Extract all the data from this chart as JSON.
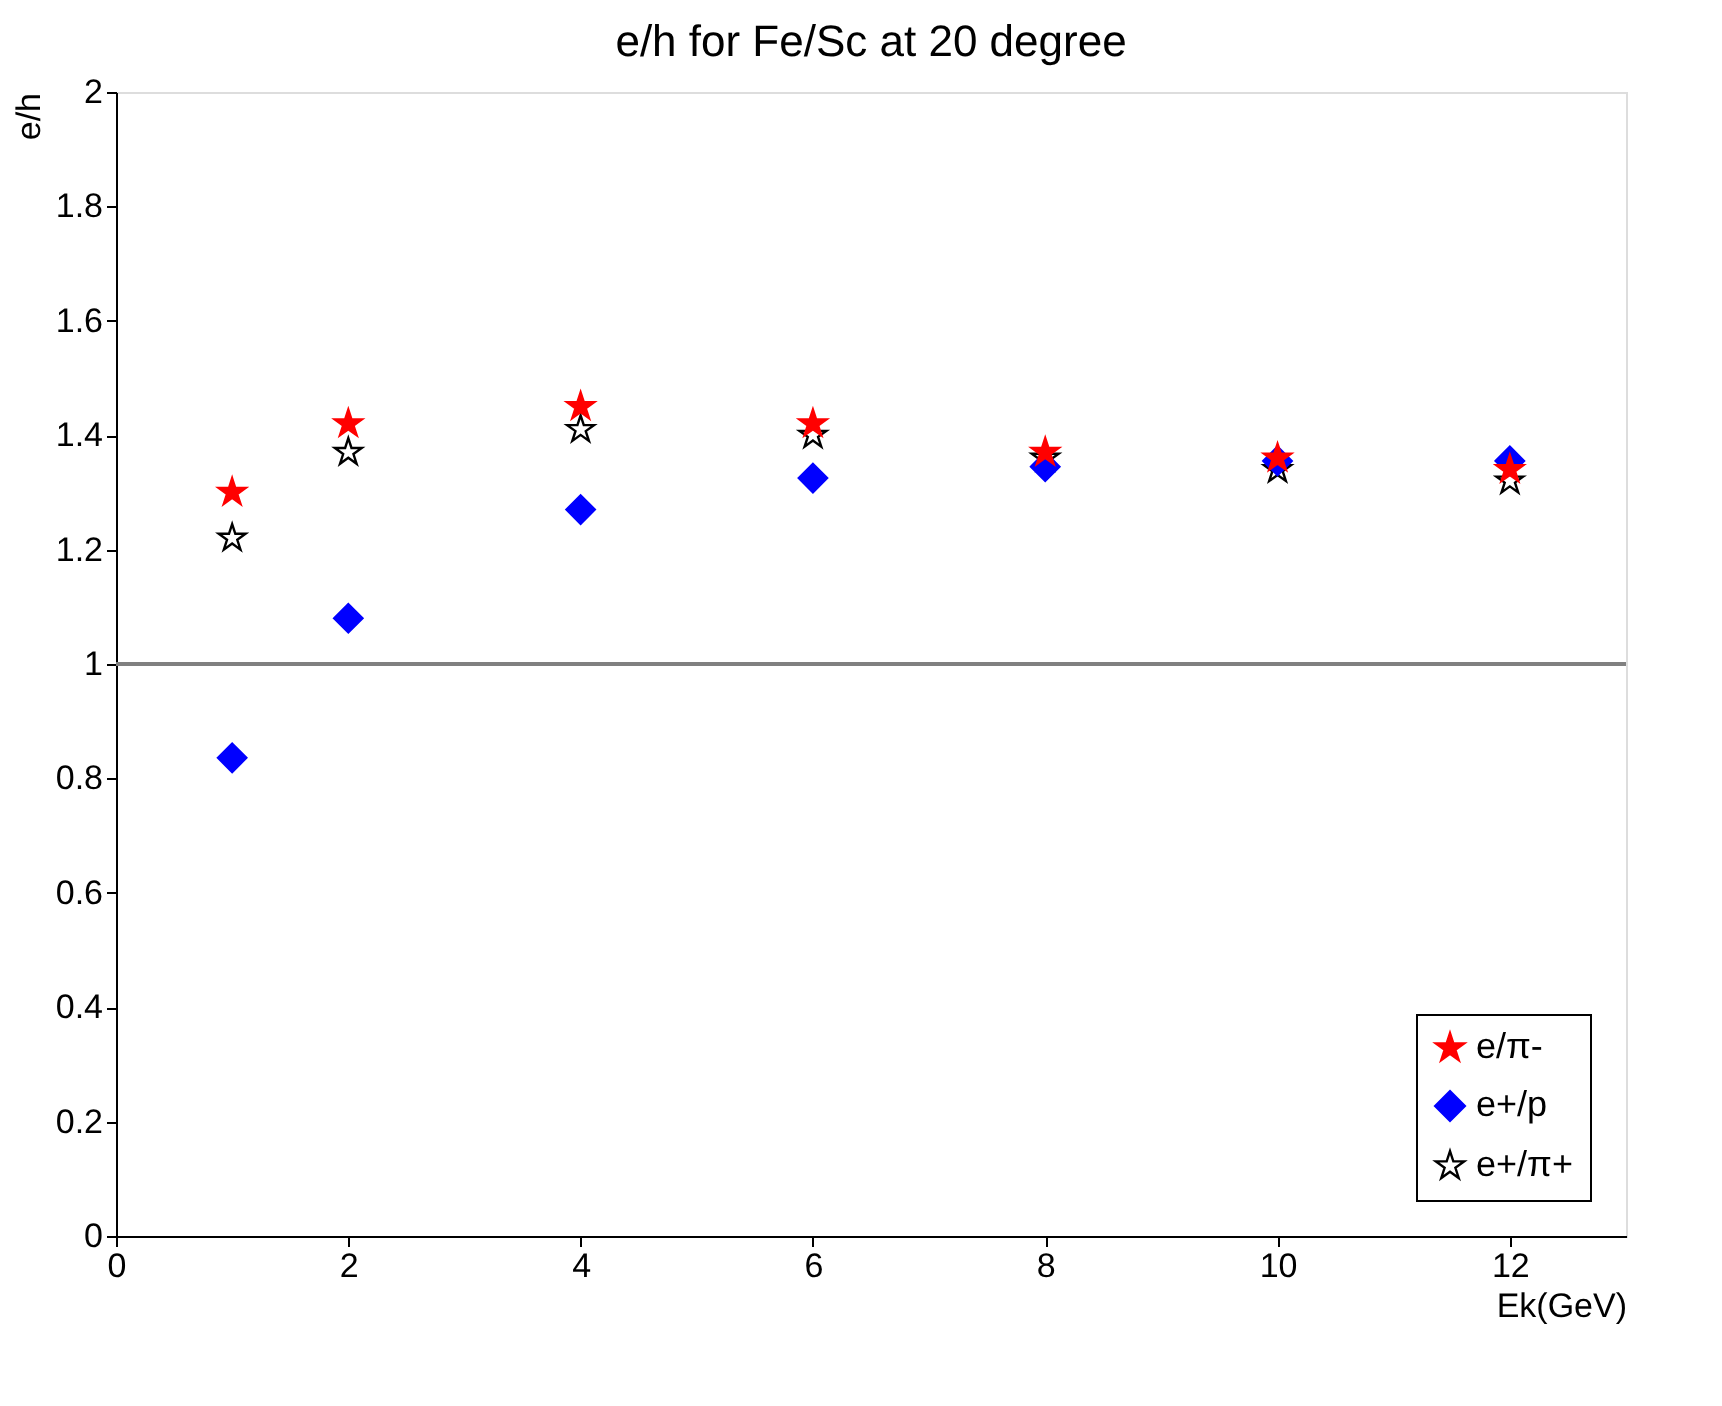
{
  "chart_data": {
    "type": "scatter",
    "title": "e/h for Fe/Sc at 20 degree",
    "xlabel": "Ek(GeV)",
    "ylabel": "e/h",
    "x": [
      1,
      2,
      4,
      6,
      8,
      10,
      12
    ],
    "series": [
      {
        "name": "e/π-",
        "color": "#ff0000",
        "marker": "star",
        "values": [
          1.3,
          1.42,
          1.45,
          1.42,
          1.37,
          1.36,
          1.34
        ]
      },
      {
        "name": "e+/p",
        "color": "#0000ff",
        "marker": "diamond",
        "values": [
          0.836,
          1.08,
          1.27,
          1.325,
          1.345,
          1.355,
          1.355
        ]
      },
      {
        "name": "e+/π+",
        "color": "#ffffff",
        "marker": "star",
        "values": [
          1.22,
          1.37,
          1.41,
          1.4,
          1.36,
          1.34,
          1.32
        ]
      }
    ],
    "xlim": [
      0,
      13
    ],
    "xticks": [
      0,
      2,
      4,
      6,
      8,
      10,
      12
    ],
    "ylim": [
      0,
      2
    ],
    "yticks": [
      0,
      0.2,
      0.4,
      0.6,
      0.8,
      1,
      1.2,
      1.4,
      1.6,
      1.8,
      2
    ],
    "ref_lines": [
      {
        "axis": "y",
        "value": 1,
        "color": "#808080"
      }
    ],
    "legend": "bottom right",
    "grid": false
  }
}
